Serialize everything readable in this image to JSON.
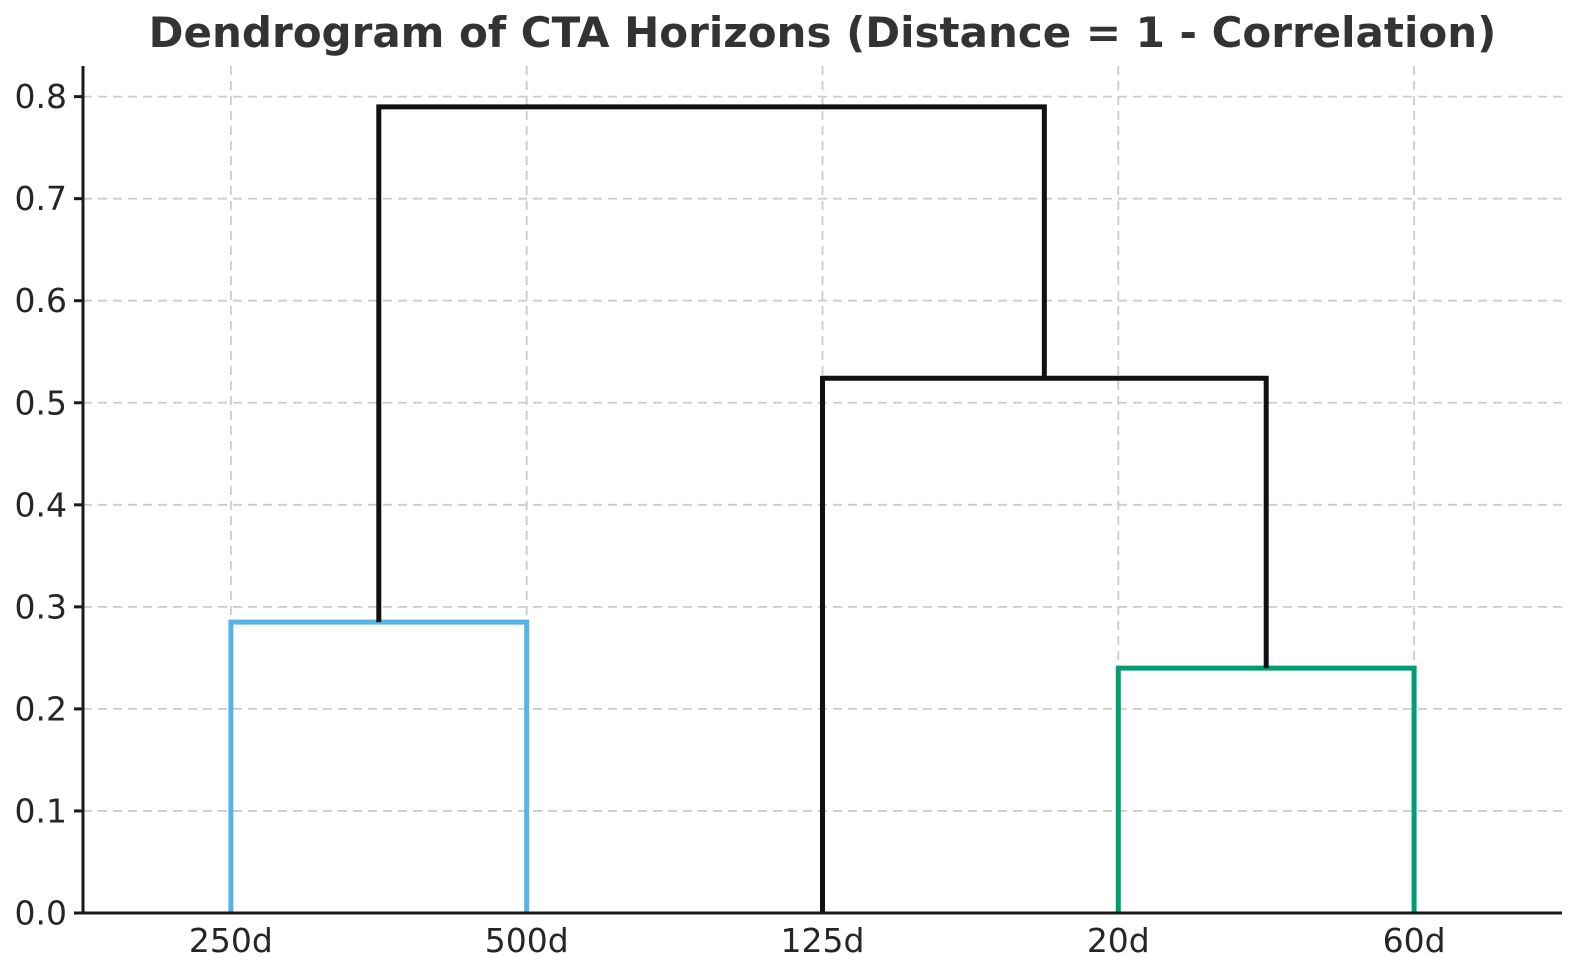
{
  "chart_data": {
    "type": "dendrogram",
    "title": "Dendrogram of CTA Horizons (Distance = 1 - Correlation)",
    "xlabel": "",
    "ylabel": "",
    "grid": true,
    "legend": "none",
    "xlim": [
      0,
      50
    ],
    "ylim": [
      0,
      0.83
    ],
    "y_ticks": [
      {
        "value": 0.0,
        "label": "0.0"
      },
      {
        "value": 0.1,
        "label": "0.1"
      },
      {
        "value": 0.2,
        "label": "0.2"
      },
      {
        "value": 0.3,
        "label": "0.3"
      },
      {
        "value": 0.4,
        "label": "0.4"
      },
      {
        "value": 0.5,
        "label": "0.5"
      },
      {
        "value": 0.6,
        "label": "0.6"
      },
      {
        "value": 0.7,
        "label": "0.7"
      },
      {
        "value": 0.8,
        "label": "0.8"
      }
    ],
    "leaves": [
      {
        "label": "250d",
        "x": 5
      },
      {
        "label": "500d",
        "x": 15
      },
      {
        "label": "125d",
        "x": 25
      },
      {
        "label": "20d",
        "x": 35
      },
      {
        "label": "60d",
        "x": 45
      }
    ],
    "links": [
      {
        "cluster": "250d + 500d",
        "x1": 5,
        "y1": 0.0,
        "x2": 15,
        "y2": 0.0,
        "height": 0.285,
        "color": "#56b4e9"
      },
      {
        "cluster": "20d + 60d",
        "x1": 35,
        "y1": 0.0,
        "x2": 45,
        "y2": 0.0,
        "height": 0.24,
        "color": "#029e73"
      },
      {
        "cluster": "125d + (20d+60d)",
        "x1": 25,
        "y1": 0.0,
        "x2": 40,
        "y2": 0.24,
        "height": 0.524,
        "color": "#111111"
      },
      {
        "cluster": "(250d+500d) + rest",
        "x1": 10,
        "y1": 0.285,
        "x2": 32.5,
        "y2": 0.524,
        "height": 0.79,
        "color": "#111111"
      }
    ],
    "colors": {
      "link_cluster_blue": "#56b4e9",
      "link_cluster_green": "#029e73",
      "link_above_threshold": "#111111",
      "grid": "#cccccc",
      "spine": "#1a1a1a",
      "tick_text": "#262626",
      "title_text": "#333333",
      "background": "#ffffff"
    }
  }
}
